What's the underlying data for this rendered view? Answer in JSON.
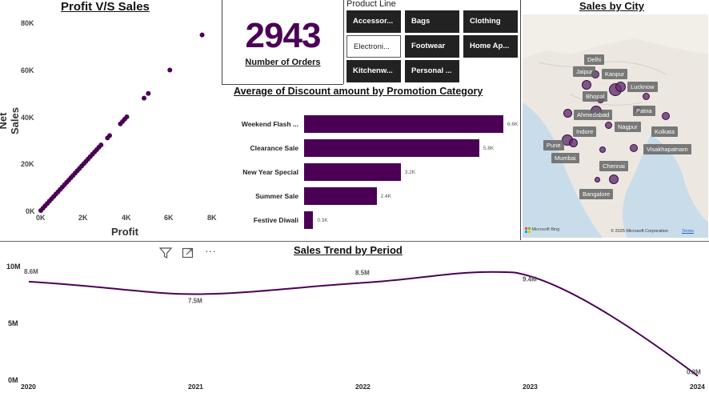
{
  "scatter": {
    "title": "Profit V/S Sales",
    "xlabel": "Profit",
    "ylabel": "Net Sales",
    "yticks": [
      "80K",
      "60K",
      "40K",
      "20K",
      "0K"
    ],
    "xticks": [
      "0K",
      "2K",
      "4K",
      "6K",
      "8K"
    ]
  },
  "kpi": {
    "value": "2943",
    "label": "Number of Orders"
  },
  "product_line": {
    "header": "Product Line",
    "buttons": [
      "Accessor...",
      "Bags",
      "Clothing",
      "Electroni...",
      "Footwear",
      "Home Ap...",
      "Kitchenw...",
      "Personal ..."
    ]
  },
  "discount": {
    "title": "Average of Discount amount by Promotion Category",
    "categories": [
      "Weekend Flash ...",
      "Clearance Sale",
      "New Year Special",
      "Summer Sale",
      "Festive Diwali"
    ],
    "values": [
      6.6,
      5.8,
      3.2,
      2.4,
      0.3
    ],
    "value_labels": [
      "6.6K",
      "5.8K",
      "3.2K",
      "2.4K",
      "0.3K"
    ]
  },
  "map": {
    "title": "Sales by City",
    "cities": [
      "Delhi",
      "Jaipur",
      "Kanpur",
      "Lucknow",
      "Bhopal",
      "Patna",
      "Ahmedabad",
      "Indore",
      "Nagpur",
      "Kolkata",
      "Pune",
      "Visakhapatnam",
      "Mumbai",
      "Chennai",
      "Bangalore"
    ],
    "attribution": "© 2025 Microsoft Corporation",
    "terms": "Terms",
    "brand": "Microsoft Bing"
  },
  "trend": {
    "title": "Sales Trend by Period",
    "yticks": [
      "10M",
      "5M",
      "0M"
    ],
    "years": [
      "2020",
      "2021",
      "2022",
      "2023",
      "2024"
    ],
    "value_labels": [
      "8.6M",
      "7.5M",
      "8.5M",
      "9.4M",
      "0.3M"
    ]
  },
  "colors": {
    "accent": "#4b0055",
    "kpi": "#4b0055"
  },
  "chart_data": [
    {
      "type": "scatter",
      "title": "Profit V/S Sales",
      "xlabel": "Profit",
      "ylabel": "Net Sales",
      "xlim": [
        0,
        8000
      ],
      "ylim": [
        0,
        80000
      ],
      "points": [
        [
          0,
          0
        ],
        [
          100,
          1000
        ],
        [
          200,
          2000
        ],
        [
          300,
          3000
        ],
        [
          400,
          4000
        ],
        [
          500,
          5000
        ],
        [
          600,
          6000
        ],
        [
          700,
          7000
        ],
        [
          800,
          8000
        ],
        [
          900,
          9000
        ],
        [
          1000,
          10000
        ],
        [
          1100,
          11000
        ],
        [
          1200,
          12000
        ],
        [
          1300,
          13000
        ],
        [
          1400,
          14000
        ],
        [
          1500,
          15000
        ],
        [
          1600,
          16000
        ],
        [
          1700,
          17000
        ],
        [
          1800,
          18000
        ],
        [
          1900,
          19000
        ],
        [
          2000,
          20000
        ],
        [
          2100,
          21000
        ],
        [
          2200,
          22000
        ],
        [
          2300,
          23000
        ],
        [
          2400,
          24000
        ],
        [
          2500,
          25000
        ],
        [
          2600,
          26000
        ],
        [
          2700,
          27000
        ],
        [
          2800,
          28000
        ],
        [
          3100,
          31000
        ],
        [
          3200,
          32000
        ],
        [
          3700,
          37000
        ],
        [
          3800,
          38000
        ],
        [
          3900,
          39000
        ],
        [
          4000,
          40000
        ],
        [
          4800,
          48000
        ],
        [
          5000,
          50000
        ],
        [
          6000,
          60000
        ],
        [
          7500,
          75000
        ]
      ]
    },
    {
      "type": "bar",
      "title": "Average of Discount amount by Promotion Category",
      "categories": [
        "Weekend Flash ...",
        "Clearance Sale",
        "New Year Special",
        "Summer Sale",
        "Festive Diwali"
      ],
      "values": [
        6600,
        5800,
        3200,
        2400,
        300
      ]
    },
    {
      "type": "line",
      "title": "Sales Trend by Period",
      "x": [
        "2020",
        "2021",
        "2022",
        "2023",
        "2024"
      ],
      "values": [
        8.6,
        7.5,
        8.5,
        9.4,
        0.3
      ],
      "ylim": [
        0,
        10
      ]
    }
  ]
}
